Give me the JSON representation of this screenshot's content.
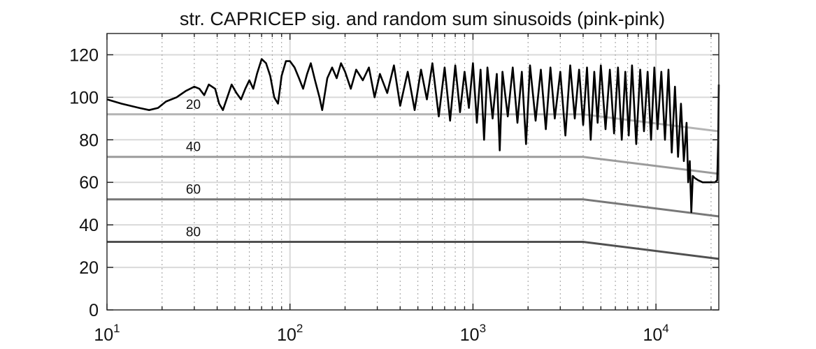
{
  "chart_data": {
    "type": "line",
    "title": "str. CAPRICEP sig. and random sum sinusoids (pink-pink)",
    "xlabel": "",
    "ylabel": "",
    "x_scale": "log",
    "xlim": [
      10,
      22050
    ],
    "ylim": [
      0,
      130
    ],
    "grid": true,
    "x_ticks": [
      {
        "value": 10,
        "base": "10",
        "exp": "1"
      },
      {
        "value": 100,
        "base": "10",
        "exp": "2"
      },
      {
        "value": 1000,
        "base": "10",
        "exp": "3"
      },
      {
        "value": 10000,
        "base": "10",
        "exp": "4"
      }
    ],
    "y_ticks": [
      {
        "value": 0,
        "label": "0"
      },
      {
        "value": 20,
        "label": "20"
      },
      {
        "value": 40,
        "label": "40"
      },
      {
        "value": 60,
        "label": "60"
      },
      {
        "value": 80,
        "label": "80"
      },
      {
        "value": 100,
        "label": "100"
      },
      {
        "value": 120,
        "label": "120"
      }
    ],
    "spectrum": {
      "color": "#000000",
      "points": [
        [
          10,
          99
        ],
        [
          12,
          97
        ],
        [
          15,
          95
        ],
        [
          17,
          94
        ],
        [
          19,
          95
        ],
        [
          21,
          98
        ],
        [
          24,
          100
        ],
        [
          27,
          103
        ],
        [
          30,
          105
        ],
        [
          32,
          104
        ],
        [
          34,
          101
        ],
        [
          36,
          106
        ],
        [
          39,
          104
        ],
        [
          41,
          97
        ],
        [
          43,
          94
        ],
        [
          45,
          99
        ],
        [
          48,
          106
        ],
        [
          51,
          102
        ],
        [
          54,
          99
        ],
        [
          57,
          104
        ],
        [
          60,
          108
        ],
        [
          63,
          104
        ],
        [
          66,
          111
        ],
        [
          70,
          118
        ],
        [
          74,
          116
        ],
        [
          78,
          110
        ],
        [
          82,
          100
        ],
        [
          86,
          97
        ],
        [
          90,
          110
        ],
        [
          95,
          117
        ],
        [
          100,
          117
        ],
        [
          106,
          114
        ],
        [
          112,
          109
        ],
        [
          118,
          104
        ],
        [
          124,
          111
        ],
        [
          130,
          116
        ],
        [
          137,
          108
        ],
        [
          145,
          100
        ],
        [
          150,
          94
        ],
        [
          160,
          109
        ],
        [
          170,
          114
        ],
        [
          180,
          109
        ],
        [
          190,
          116
        ],
        [
          200,
          112
        ],
        [
          215,
          104
        ],
        [
          230,
          113
        ],
        [
          250,
          108
        ],
        [
          270,
          114
        ],
        [
          290,
          100
        ],
        [
          310,
          111
        ],
        [
          340,
          102
        ],
        [
          370,
          115
        ],
        [
          400,
          96
        ],
        [
          440,
          112
        ],
        [
          480,
          94
        ],
        [
          520,
          113
        ],
        [
          560,
          99
        ],
        [
          600,
          116
        ],
        [
          650,
          91
        ],
        [
          700,
          114
        ],
        [
          750,
          89
        ],
        [
          800,
          115
        ],
        [
          850,
          93
        ],
        [
          900,
          112
        ],
        [
          950,
          95
        ],
        [
          1000,
          116
        ],
        [
          1050,
          88
        ],
        [
          1100,
          113
        ],
        [
          1150,
          80
        ],
        [
          1200,
          114
        ],
        [
          1280,
          90
        ],
        [
          1350,
          111
        ],
        [
          1400,
          75
        ],
        [
          1450,
          112
        ],
        [
          1550,
          91
        ],
        [
          1650,
          114
        ],
        [
          1750,
          88
        ],
        [
          1850,
          112
        ],
        [
          1950,
          78
        ],
        [
          2050,
          115
        ],
        [
          2200,
          89
        ],
        [
          2350,
          113
        ],
        [
          2500,
          85
        ],
        [
          2650,
          114
        ],
        [
          2800,
          90
        ],
        [
          3000,
          112
        ],
        [
          3200,
          82
        ],
        [
          3400,
          115
        ],
        [
          3600,
          90
        ],
        [
          3800,
          113
        ],
        [
          4000,
          87
        ],
        [
          4200,
          114
        ],
        [
          4400,
          80
        ],
        [
          4600,
          112
        ],
        [
          4800,
          88
        ],
        [
          5000,
          115
        ],
        [
          5300,
          85
        ],
        [
          5600,
          113
        ],
        [
          5900,
          83
        ],
        [
          6200,
          114
        ],
        [
          6500,
          80
        ],
        [
          6800,
          112
        ],
        [
          7100,
          82
        ],
        [
          7400,
          115
        ],
        [
          7800,
          78
        ],
        [
          8200,
          113
        ],
        [
          8600,
          84
        ],
        [
          9000,
          112
        ],
        [
          9400,
          80
        ],
        [
          9800,
          114
        ],
        [
          10200,
          85
        ],
        [
          10700,
          112
        ],
        [
          11200,
          80
        ],
        [
          11700,
          113
        ],
        [
          12200,
          74
        ],
        [
          12700,
          105
        ],
        [
          13200,
          72
        ],
        [
          13700,
          97
        ],
        [
          14200,
          70
        ],
        [
          14700,
          88
        ],
        [
          15000,
          60
        ],
        [
          15300,
          70
        ],
        [
          15600,
          46
        ],
        [
          15900,
          63
        ],
        [
          16300,
          62
        ],
        [
          17000,
          61
        ],
        [
          18000,
          60
        ],
        [
          19000,
          60
        ],
        [
          20000,
          60
        ],
        [
          21000,
          60
        ],
        [
          21600,
          61
        ],
        [
          21900,
          80
        ],
        [
          22050,
          106
        ]
      ]
    },
    "threshold_lines": [
      {
        "label": "20",
        "color": "#b4b4b4",
        "points": [
          [
            10,
            92
          ],
          [
            4000,
            92
          ],
          [
            22050,
            84
          ]
        ]
      },
      {
        "label": "40",
        "color": "#9b9b9b",
        "points": [
          [
            10,
            72
          ],
          [
            4000,
            72
          ],
          [
            22050,
            64
          ]
        ]
      },
      {
        "label": "60",
        "color": "#787878",
        "points": [
          [
            10,
            52
          ],
          [
            4000,
            52
          ],
          [
            22050,
            44
          ]
        ]
      },
      {
        "label": "80",
        "color": "#505050",
        "points": [
          [
            10,
            32
          ],
          [
            4000,
            32
          ],
          [
            22050,
            24
          ]
        ]
      }
    ],
    "threshold_label_x": 27
  }
}
